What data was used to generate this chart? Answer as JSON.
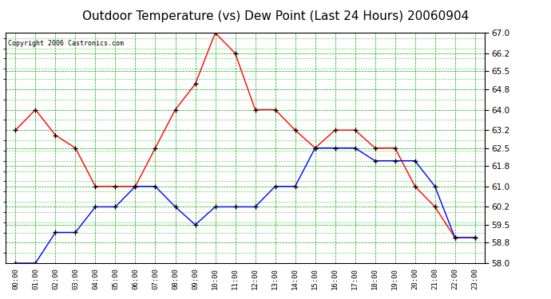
{
  "title": "Outdoor Temperature (vs) Dew Point (Last 24 Hours) 20060904",
  "copyright": "Copyright 2006 Castronics.com",
  "x_labels": [
    "00:00",
    "01:00",
    "02:00",
    "03:00",
    "04:00",
    "05:00",
    "06:00",
    "07:00",
    "08:00",
    "09:00",
    "10:00",
    "11:00",
    "12:00",
    "13:00",
    "14:00",
    "15:00",
    "16:00",
    "17:00",
    "18:00",
    "19:00",
    "20:00",
    "21:00",
    "22:00",
    "23:00"
  ],
  "temp_red": [
    63.2,
    64.0,
    63.0,
    62.5,
    61.0,
    61.0,
    61.0,
    62.5,
    64.0,
    65.0,
    67.0,
    66.2,
    64.0,
    64.0,
    63.2,
    62.5,
    63.2,
    63.2,
    62.5,
    62.5,
    61.0,
    60.2,
    59.0,
    59.0
  ],
  "dew_blue": [
    58.0,
    58.0,
    59.2,
    59.2,
    60.2,
    60.2,
    61.0,
    61.0,
    60.2,
    59.5,
    60.2,
    60.2,
    60.2,
    61.0,
    61.0,
    62.5,
    62.5,
    62.5,
    62.0,
    62.0,
    62.0,
    61.0,
    59.0,
    59.0
  ],
  "ylim_min": 58.0,
  "ylim_max": 67.0,
  "yticks": [
    58.0,
    58.8,
    59.5,
    60.2,
    61.0,
    61.8,
    62.5,
    63.2,
    64.0,
    64.8,
    65.5,
    66.2,
    67.0
  ],
  "bg_color": "#ffffff",
  "grid_major_color": "#00aa00",
  "grid_minor_color": "#44cc44",
  "line_red": "#ff0000",
  "line_blue": "#0000ff",
  "marker_color": "#000000",
  "title_fontsize": 11,
  "copy_fontsize": 6
}
